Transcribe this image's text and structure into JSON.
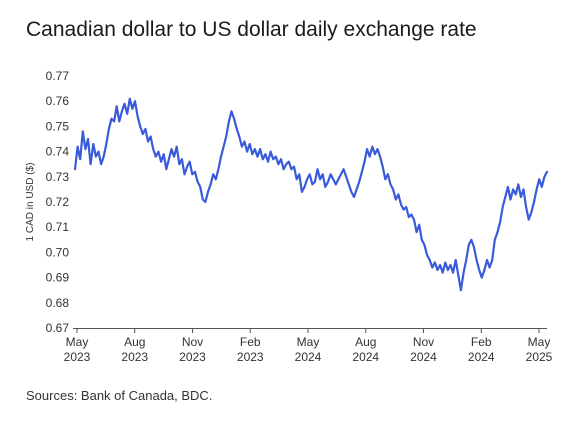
{
  "title": "Canadian dollar to US dollar daily exchange rate",
  "source": "Sources: Bank of Canada, BDC.",
  "colors": {
    "line": "#3a5bd9",
    "axis": "#555555",
    "text": "#333333"
  },
  "chart_data": {
    "type": "line",
    "title": "Canadian dollar to US dollar daily exchange rate",
    "xlabel": "",
    "ylabel": "1 CAD in USD ($)",
    "ylim": [
      0.67,
      0.77
    ],
    "yticks": [
      "0.67",
      "0.68",
      "0.69",
      "0.70",
      "0.71",
      "0.72",
      "0.73",
      "0.74",
      "0.75",
      "0.76",
      "0.77"
    ],
    "xticks": [
      {
        "month": "May",
        "year": "2023"
      },
      {
        "month": "Aug",
        "year": "2023"
      },
      {
        "month": "Nov",
        "year": "2023"
      },
      {
        "month": "Feb",
        "year": "2023"
      },
      {
        "month": "May",
        "year": "2024"
      },
      {
        "month": "Aug",
        "year": "2024"
      },
      {
        "month": "Nov",
        "year": "2024"
      },
      {
        "month": "Feb",
        "year": "2024"
      },
      {
        "month": "May",
        "year": "2025"
      }
    ],
    "grid": false,
    "series": [
      {
        "values": [
          0.733,
          0.742,
          0.737,
          0.748,
          0.741,
          0.745,
          0.735,
          0.743,
          0.738,
          0.74,
          0.735,
          0.738,
          0.743,
          0.749,
          0.753,
          0.752,
          0.758,
          0.752,
          0.756,
          0.759,
          0.755,
          0.761,
          0.757,
          0.76,
          0.754,
          0.75,
          0.747,
          0.749,
          0.744,
          0.746,
          0.741,
          0.738,
          0.74,
          0.736,
          0.739,
          0.733,
          0.737,
          0.741,
          0.738,
          0.742,
          0.735,
          0.737,
          0.731,
          0.734,
          0.736,
          0.731,
          0.732,
          0.728,
          0.726,
          0.721,
          0.72,
          0.724,
          0.727,
          0.731,
          0.729,
          0.733,
          0.738,
          0.742,
          0.746,
          0.752,
          0.756,
          0.753,
          0.749,
          0.746,
          0.742,
          0.744,
          0.74,
          0.743,
          0.739,
          0.741,
          0.738,
          0.741,
          0.737,
          0.739,
          0.736,
          0.74,
          0.737,
          0.738,
          0.735,
          0.737,
          0.733,
          0.735,
          0.736,
          0.733,
          0.734,
          0.729,
          0.731,
          0.724,
          0.726,
          0.729,
          0.731,
          0.727,
          0.728,
          0.733,
          0.729,
          0.731,
          0.726,
          0.728,
          0.731,
          0.729,
          0.727,
          0.729,
          0.731,
          0.733,
          0.73,
          0.727,
          0.724,
          0.722,
          0.725,
          0.728,
          0.732,
          0.736,
          0.741,
          0.738,
          0.742,
          0.739,
          0.741,
          0.738,
          0.734,
          0.729,
          0.731,
          0.727,
          0.725,
          0.721,
          0.723,
          0.719,
          0.717,
          0.718,
          0.714,
          0.715,
          0.713,
          0.708,
          0.711,
          0.705,
          0.703,
          0.699,
          0.697,
          0.694,
          0.696,
          0.693,
          0.695,
          0.692,
          0.696,
          0.693,
          0.695,
          0.692,
          0.697,
          0.691,
          0.685,
          0.692,
          0.697,
          0.703,
          0.705,
          0.702,
          0.697,
          0.693,
          0.69,
          0.693,
          0.697,
          0.694,
          0.697,
          0.705,
          0.708,
          0.712,
          0.718,
          0.722,
          0.726,
          0.721,
          0.725,
          0.723,
          0.727,
          0.722,
          0.725,
          0.718,
          0.713,
          0.716,
          0.72,
          0.725,
          0.729,
          0.726,
          0.73,
          0.732
        ]
      }
    ]
  }
}
